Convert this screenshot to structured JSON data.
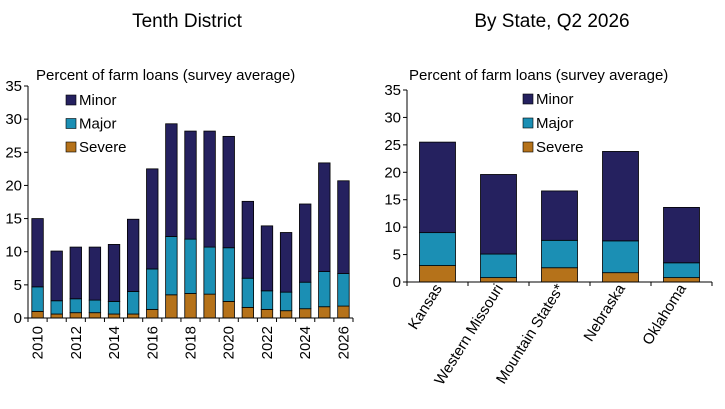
{
  "colors": {
    "minor": "#25215f",
    "major": "#1b8fb4",
    "severe": "#b5721a"
  },
  "chart_data": [
    {
      "type": "bar",
      "stacked": true,
      "title": "Tenth District",
      "ylabel": "Percent of farm loans (survey average)",
      "ylim": [
        0,
        35
      ],
      "yticks": [
        0,
        5,
        10,
        15,
        20,
        25,
        30,
        35
      ],
      "categories": [
        "2010",
        "2011",
        "2012",
        "2013",
        "2014",
        "2015",
        "2016",
        "2017",
        "2018",
        "2019",
        "2020",
        "2021",
        "2022",
        "2023",
        "2024",
        "2025",
        "2026"
      ],
      "xtick_labels": [
        "2010",
        "2012",
        "2014",
        "2016",
        "2018",
        "2020",
        "2022",
        "2024",
        "2026"
      ],
      "series": [
        {
          "name": "Severe",
          "values": [
            1.0,
            0.6,
            0.8,
            0.8,
            0.6,
            0.6,
            1.3,
            3.5,
            3.7,
            3.6,
            2.5,
            1.6,
            1.3,
            1.1,
            1.4,
            1.7,
            1.8
          ]
        },
        {
          "name": "Major",
          "values": [
            3.7,
            2.0,
            2.1,
            1.9,
            1.9,
            3.4,
            6.1,
            8.8,
            8.2,
            7.1,
            8.1,
            4.4,
            2.8,
            2.8,
            4.0,
            5.3,
            4.9
          ]
        },
        {
          "name": "Minor",
          "values": [
            10.3,
            7.5,
            7.8,
            8.0,
            8.6,
            10.9,
            15.1,
            17.0,
            16.3,
            17.5,
            16.8,
            11.6,
            9.8,
            9.0,
            11.8,
            16.4,
            14.0
          ]
        }
      ],
      "legend": [
        "Minor",
        "Major",
        "Severe"
      ],
      "legend_position": "top-left",
      "grid": false
    },
    {
      "type": "bar",
      "stacked": true,
      "title": "By State, Q2 2026",
      "ylabel": "Percent of farm loans (survey average)",
      "ylim": [
        0,
        35
      ],
      "yticks": [
        0,
        5,
        10,
        15,
        20,
        25,
        30,
        35
      ],
      "categories": [
        "Kansas",
        "Western Missouri",
        "Mountain States*",
        "Nebraska",
        "Oklahoma"
      ],
      "series": [
        {
          "name": "Severe",
          "values": [
            3.0,
            0.8,
            2.6,
            1.7,
            0.8
          ]
        },
        {
          "name": "Major",
          "values": [
            6.0,
            4.3,
            5.0,
            5.8,
            2.7
          ]
        },
        {
          "name": "Minor",
          "values": [
            16.5,
            14.5,
            9.0,
            16.3,
            10.1
          ]
        }
      ],
      "legend": [
        "Minor",
        "Major",
        "Severe"
      ],
      "legend_position": "top-left",
      "grid": false
    }
  ]
}
